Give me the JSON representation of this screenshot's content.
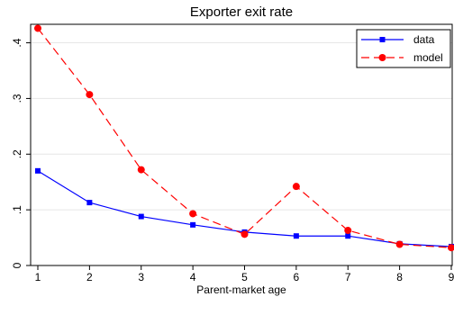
{
  "chart_data": {
    "type": "line",
    "title": "Exporter exit rate",
    "xlabel": "Parent-market age",
    "ylabel": "",
    "x": [
      1,
      2,
      3,
      4,
      5,
      6,
      7,
      8,
      9
    ],
    "xlim": [
      1,
      9
    ],
    "ylim": [
      0,
      0.43
    ],
    "x_ticks": [
      "1",
      "2",
      "3",
      "4",
      "5",
      "6",
      "7",
      "8",
      "9"
    ],
    "y_ticks": [
      {
        "value": 0,
        "label": "0"
      },
      {
        "value": 0.1,
        "label": ".1"
      },
      {
        "value": 0.2,
        "label": ".2"
      },
      {
        "value": 0.3,
        "label": ".3"
      },
      {
        "value": 0.4,
        "label": ".4"
      }
    ],
    "grid": true,
    "legend_position": "top-right",
    "series": [
      {
        "name": "data",
        "color": "#0000ff",
        "marker": "square",
        "dash": "solid",
        "values": [
          0.17,
          0.113,
          0.088,
          0.073,
          0.06,
          0.053,
          0.053,
          0.039,
          0.034
        ]
      },
      {
        "name": "model",
        "color": "#ff0000",
        "marker": "circle",
        "dash": "dashed",
        "values": [
          0.426,
          0.307,
          0.172,
          0.093,
          0.056,
          0.142,
          0.063,
          0.038,
          0.032
        ]
      }
    ]
  }
}
